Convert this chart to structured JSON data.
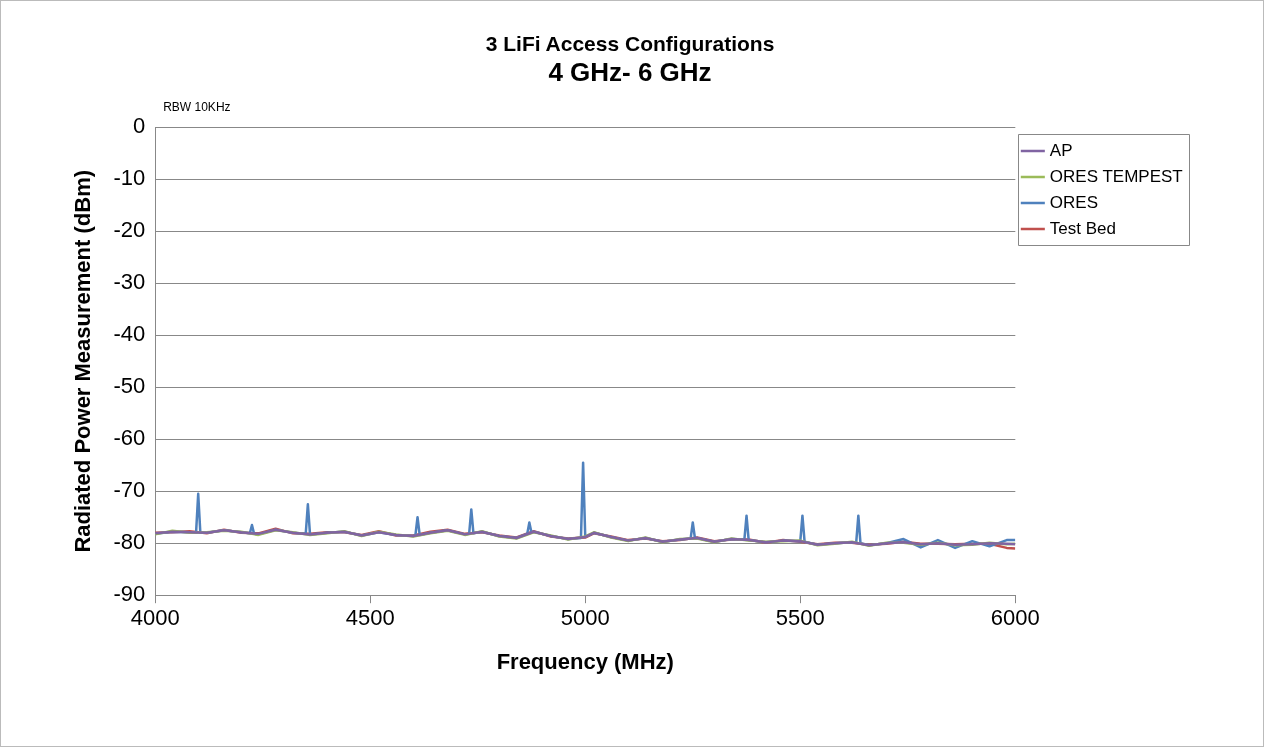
{
  "chart_data": {
    "type": "line",
    "title": "3 LiFi Access Configurations",
    "subtitle": "4 GHz- 6 GHz",
    "xlabel": "Frequency (MHz)",
    "ylabel": "Radiated Power Measurement (dBm)",
    "annotations": [
      "RBW 10KHz"
    ],
    "xlim": [
      4000,
      6000
    ],
    "xticks": [
      4000,
      4500,
      5000,
      5500,
      6000
    ],
    "ylim": [
      -90,
      0
    ],
    "yticks": [
      -90,
      -80,
      -70,
      -60,
      -50,
      -40,
      -30,
      -20,
      -10,
      0
    ],
    "grid": "y",
    "legend": "right",
    "marker": "none",
    "line_style": "solid",
    "x": [
      4000,
      4040,
      4080,
      4120,
      4160,
      4200,
      4240,
      4280,
      4320,
      4360,
      4400,
      4440,
      4480,
      4520,
      4560,
      4600,
      4640,
      4680,
      4720,
      4760,
      4800,
      4840,
      4880,
      4920,
      4960,
      5000,
      5020,
      5060,
      5100,
      5140,
      5180,
      5220,
      5260,
      5300,
      5340,
      5380,
      5420,
      5460,
      5500,
      5540,
      5580,
      5620,
      5660,
      5700,
      5740,
      5780,
      5820,
      5860,
      5900,
      5940,
      5980,
      6000
    ],
    "series": [
      {
        "name": "Test Bed",
        "color": "#c0504d",
        "values": [
          -78.0,
          -77.9,
          -77.7,
          -78.1,
          -77.4,
          -78.0,
          -78.1,
          -77.2,
          -78.1,
          -78.2,
          -77.9,
          -77.9,
          -78.4,
          -77.7,
          -78.5,
          -78.5,
          -77.8,
          -77.4,
          -78.2,
          -77.9,
          -78.5,
          -78.9,
          -77.7,
          -78.7,
          -79.1,
          -78.9,
          -78.1,
          -78.7,
          -79.4,
          -79.1,
          -79.6,
          -79.4,
          -78.9,
          -79.6,
          -79.3,
          -79.3,
          -79.9,
          -79.4,
          -79.7,
          -80.2,
          -79.9,
          -79.9,
          -80.3,
          -80.1,
          -79.7,
          -80.1,
          -80.1,
          -80.2,
          -80.1,
          -80.1,
          -80.9,
          -81.0
        ]
      },
      {
        "name": "ORES",
        "color": "#4f81bd",
        "x": [
          4000,
          4040,
          4080,
          4095,
          4100,
          4105,
          4120,
          4160,
          4200,
          4220,
          4225,
          4230,
          4240,
          4280,
          4320,
          4350,
          4355,
          4360,
          4400,
          4440,
          4480,
          4520,
          4560,
          4600,
          4605,
          4610,
          4615,
          4640,
          4680,
          4720,
          4730,
          4735,
          4740,
          4760,
          4800,
          4840,
          4865,
          4870,
          4875,
          4880,
          4920,
          4960,
          4990,
          4995,
          5000,
          5020,
          5060,
          5100,
          5140,
          5180,
          5220,
          5245,
          5250,
          5255,
          5260,
          5300,
          5340,
          5370,
          5375,
          5380,
          5420,
          5460,
          5500,
          5505,
          5510,
          5540,
          5580,
          5620,
          5630,
          5635,
          5640,
          5660,
          5700,
          5740,
          5780,
          5820,
          5860,
          5900,
          5940,
          5980,
          6000
        ],
        "values": [
          -78.2,
          -77.8,
          -77.9,
          -78.0,
          -70.5,
          -78.0,
          -78.0,
          -77.5,
          -77.9,
          -78.1,
          -76.5,
          -78.2,
          -78.3,
          -77.4,
          -78.0,
          -78.2,
          -72.5,
          -78.3,
          -78.0,
          -77.8,
          -78.5,
          -77.9,
          -78.4,
          -78.6,
          -78.5,
          -75.0,
          -78.4,
          -78.0,
          -77.5,
          -78.3,
          -78.2,
          -73.5,
          -78.1,
          -77.8,
          -78.6,
          -79.0,
          -78.2,
          -76.0,
          -78.0,
          -77.8,
          -78.6,
          -79.2,
          -79.0,
          -64.5,
          -78.8,
          -78.0,
          -78.8,
          -79.5,
          -79.0,
          -79.7,
          -79.3,
          -79.1,
          -76.0,
          -79.0,
          -79.0,
          -79.7,
          -79.2,
          -79.3,
          -74.7,
          -79.4,
          -79.8,
          -79.5,
          -79.6,
          -74.7,
          -79.7,
          -80.3,
          -80.0,
          -79.8,
          -79.9,
          -74.7,
          -80.0,
          -80.4,
          -80.0,
          -79.2,
          -80.8,
          -79.4,
          -80.9,
          -79.6,
          -80.6,
          -79.4,
          -79.4
        ]
      },
      {
        "name": "ORES TEMPEST",
        "color": "#9bbb59",
        "values": [
          -78.3,
          -77.6,
          -78.0,
          -77.9,
          -77.6,
          -77.8,
          -78.4,
          -77.5,
          -77.9,
          -78.4,
          -78.1,
          -77.7,
          -78.6,
          -77.8,
          -78.3,
          -78.7,
          -78.1,
          -77.6,
          -78.4,
          -77.7,
          -78.7,
          -79.1,
          -77.9,
          -78.5,
          -79.3,
          -78.7,
          -77.9,
          -78.9,
          -79.6,
          -78.9,
          -79.8,
          -79.2,
          -79.1,
          -79.8,
          -79.1,
          -79.5,
          -79.7,
          -79.6,
          -79.5,
          -80.4,
          -80.1,
          -79.7,
          -80.5,
          -79.9,
          -79.9,
          -80.3,
          -79.9,
          -80.4,
          -80.3,
          -79.9,
          -80.2,
          -80.1
        ]
      },
      {
        "name": "AP",
        "color": "#8064a2",
        "values": [
          -78.1,
          -77.8,
          -77.9,
          -78.0,
          -77.5,
          -77.9,
          -78.2,
          -77.4,
          -78.0,
          -78.3,
          -78.0,
          -77.8,
          -78.5,
          -77.9,
          -78.4,
          -78.6,
          -78.0,
          -77.5,
          -78.3,
          -77.8,
          -78.6,
          -79.0,
          -77.8,
          -78.6,
          -79.2,
          -78.8,
          -78.0,
          -78.8,
          -79.5,
          -79.0,
          -79.7,
          -79.3,
          -79.0,
          -79.7,
          -79.2,
          -79.4,
          -79.8,
          -79.5,
          -79.6,
          -80.3,
          -80.0,
          -79.8,
          -80.4,
          -80.0,
          -79.8,
          -80.2,
          -80.0,
          -80.3,
          -80.2,
          -80.0,
          -80.1,
          -80.2
        ]
      }
    ]
  }
}
